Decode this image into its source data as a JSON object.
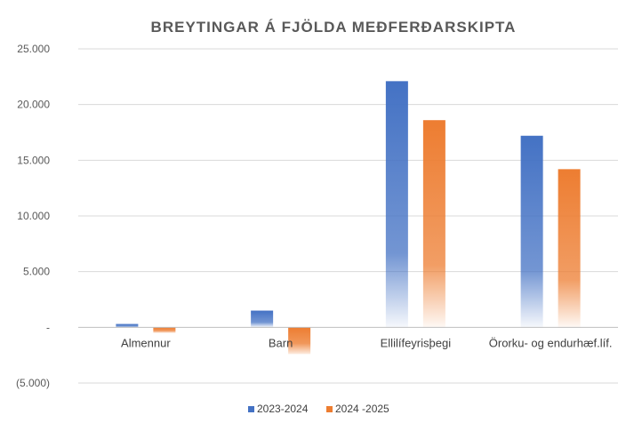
{
  "chart_data": {
    "type": "bar",
    "title": "BREYTINGAR Á FJÖLDA MEÐFERÐARSKIPTA",
    "categories": [
      "Almennur",
      "Barn",
      "Ellilífeyrisþegi",
      "Örorku- og endurhæf.líf."
    ],
    "series": [
      {
        "name": "2023-2024",
        "color": "#4472C4",
        "values": [
          300,
          1500,
          22100,
          17200
        ]
      },
      {
        "name": "2024 -2025",
        "color": "#ED7D31",
        "values": [
          -500,
          -2400,
          18600,
          14200
        ]
      }
    ],
    "ylim": [
      -5000,
      25000
    ],
    "yticks": [
      25000,
      20000,
      15000,
      10000,
      5000,
      0,
      -5000
    ],
    "ytick_labels": [
      "25.000",
      "20.000",
      "15.000",
      "10.000",
      "5.000",
      "-",
      "(5.000)"
    ],
    "legend": "bottom",
    "xlabel": "",
    "ylabel": "",
    "grid": true
  }
}
